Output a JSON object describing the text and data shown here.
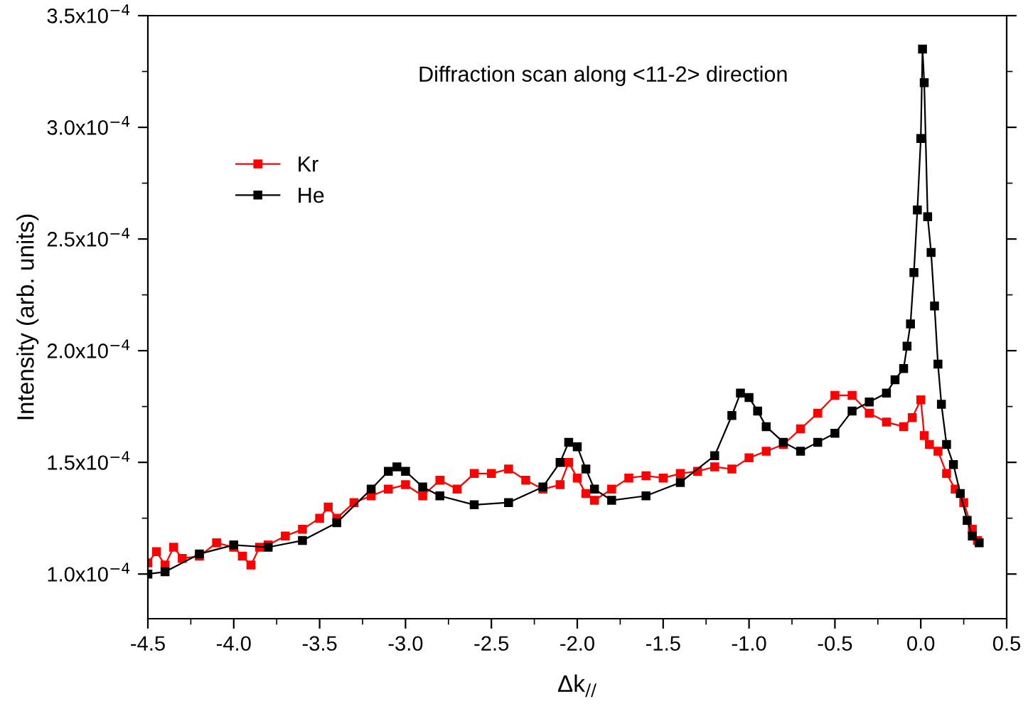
{
  "chart_data": {
    "type": "line",
    "annotations": [
      "Diffraction scan along <11-2> direction"
    ],
    "xlabel": "Δk$_{//}$",
    "ylabel": "Intensity (arb. units)",
    "xlim": [
      -4.5,
      0.5
    ],
    "ylim": [
      8e-05,
      0.00035
    ],
    "xticks": [
      {
        "value": -4.5,
        "label": "-4.5"
      },
      {
        "value": -4.25,
        "label": null
      },
      {
        "value": -4.0,
        "label": "-4.0"
      },
      {
        "value": -3.75,
        "label": null
      },
      {
        "value": -3.5,
        "label": "-3.5"
      },
      {
        "value": -3.25,
        "label": null
      },
      {
        "value": -3.0,
        "label": "-3.0"
      },
      {
        "value": -2.75,
        "label": null
      },
      {
        "value": -2.5,
        "label": "-2.5"
      },
      {
        "value": -2.25,
        "label": null
      },
      {
        "value": -2.0,
        "label": "-2.0"
      },
      {
        "value": -1.75,
        "label": null
      },
      {
        "value": -1.5,
        "label": "-1.5"
      },
      {
        "value": -1.25,
        "label": null
      },
      {
        "value": -1.0,
        "label": "-1.0"
      },
      {
        "value": -0.75,
        "label": null
      },
      {
        "value": -0.5,
        "label": "-0.5"
      },
      {
        "value": -0.25,
        "label": null
      },
      {
        "value": 0.0,
        "label": "0.0"
      },
      {
        "value": 0.25,
        "label": null
      },
      {
        "value": 0.5,
        "label": "0.5"
      }
    ],
    "yticks": [
      {
        "value": 0.0001,
        "label": "1.0x10$^{−4}$"
      },
      {
        "value": 0.000125,
        "label": null
      },
      {
        "value": 0.00015,
        "label": "1.5x10$^{−4}$"
      },
      {
        "value": 0.000175,
        "label": null
      },
      {
        "value": 0.0002,
        "label": "2.0x10$^{−4}$"
      },
      {
        "value": 0.000225,
        "label": null
      },
      {
        "value": 0.00025,
        "label": "2.5x10$^{−4}$"
      },
      {
        "value": 0.000275,
        "label": null
      },
      {
        "value": 0.0003,
        "label": "3.0x10$^{−4}$"
      },
      {
        "value": 0.000325,
        "label": null
      },
      {
        "value": 0.00035,
        "label": "3.5x10$^{−4}$"
      }
    ],
    "grid": false,
    "legend": "top left",
    "marker": "square",
    "line_style": "solid",
    "series": [
      {
        "name": "Kr",
        "color": "#ff0000",
        "x": [
          -4.5,
          -4.45,
          -4.4,
          -4.35,
          -4.3,
          -4.2,
          -4.1,
          -4.0,
          -3.95,
          -3.9,
          -3.85,
          -3.8,
          -3.7,
          -3.6,
          -3.5,
          -3.45,
          -3.4,
          -3.3,
          -3.2,
          -3.1,
          -3.0,
          -2.9,
          -2.8,
          -2.7,
          -2.6,
          -2.5,
          -2.4,
          -2.3,
          -2.2,
          -2.1,
          -2.05,
          -2.0,
          -1.95,
          -1.9,
          -1.8,
          -1.7,
          -1.6,
          -1.5,
          -1.4,
          -1.3,
          -1.2,
          -1.1,
          -1.0,
          -0.9,
          -0.8,
          -0.7,
          -0.6,
          -0.5,
          -0.4,
          -0.3,
          -0.2,
          -0.1,
          -0.05,
          0.0,
          0.02,
          0.05,
          0.1,
          0.15,
          0.2,
          0.25,
          0.3,
          0.33
        ],
        "values": [
          0.000105,
          0.00011,
          0.000104,
          0.000112,
          0.000107,
          0.000108,
          0.000114,
          0.000112,
          0.000108,
          0.000104,
          0.000112,
          0.000113,
          0.000117,
          0.00012,
          0.000125,
          0.00013,
          0.000125,
          0.000132,
          0.000135,
          0.000138,
          0.00014,
          0.000135,
          0.000142,
          0.000138,
          0.000145,
          0.000145,
          0.000147,
          0.000142,
          0.000138,
          0.00014,
          0.00015,
          0.000143,
          0.000136,
          0.000133,
          0.000138,
          0.000143,
          0.000144,
          0.000143,
          0.000145,
          0.000146,
          0.000148,
          0.000147,
          0.000152,
          0.000155,
          0.000158,
          0.000165,
          0.000172,
          0.00018,
          0.00018,
          0.000172,
          0.000168,
          0.000166,
          0.00017,
          0.000178,
          0.000162,
          0.000158,
          0.000155,
          0.000145,
          0.000138,
          0.000132,
          0.00012,
          0.000115
        ]
      },
      {
        "name": "He",
        "color": "#000000",
        "x": [
          -4.5,
          -4.4,
          -4.2,
          -4.0,
          -3.8,
          -3.6,
          -3.4,
          -3.2,
          -3.1,
          -3.05,
          -3.0,
          -2.9,
          -2.8,
          -2.6,
          -2.4,
          -2.2,
          -2.1,
          -2.05,
          -2.0,
          -1.95,
          -1.9,
          -1.8,
          -1.6,
          -1.4,
          -1.2,
          -1.1,
          -1.05,
          -1.0,
          -0.95,
          -0.9,
          -0.8,
          -0.7,
          -0.6,
          -0.5,
          -0.4,
          -0.3,
          -0.2,
          -0.15,
          -0.1,
          -0.08,
          -0.06,
          -0.04,
          -0.02,
          0.0,
          0.01,
          0.02,
          0.04,
          0.06,
          0.08,
          0.1,
          0.12,
          0.15,
          0.19,
          0.23,
          0.27,
          0.3,
          0.34
        ],
        "values": [
          0.0001,
          0.000101,
          0.000109,
          0.000113,
          0.000112,
          0.000115,
          0.000123,
          0.000138,
          0.000146,
          0.000148,
          0.000146,
          0.000139,
          0.000135,
          0.000131,
          0.000132,
          0.000139,
          0.00015,
          0.000159,
          0.000157,
          0.000147,
          0.000138,
          0.000133,
          0.000135,
          0.000141,
          0.000153,
          0.000171,
          0.000181,
          0.000179,
          0.000173,
          0.000166,
          0.000159,
          0.000155,
          0.000159,
          0.000163,
          0.000173,
          0.000177,
          0.000181,
          0.000187,
          0.000192,
          0.000202,
          0.000212,
          0.000235,
          0.000263,
          0.000295,
          0.000335,
          0.00032,
          0.00026,
          0.000244,
          0.00022,
          0.000194,
          0.000176,
          0.000158,
          0.000149,
          0.000136,
          0.000124,
          0.000117,
          0.000114
        ]
      }
    ]
  }
}
